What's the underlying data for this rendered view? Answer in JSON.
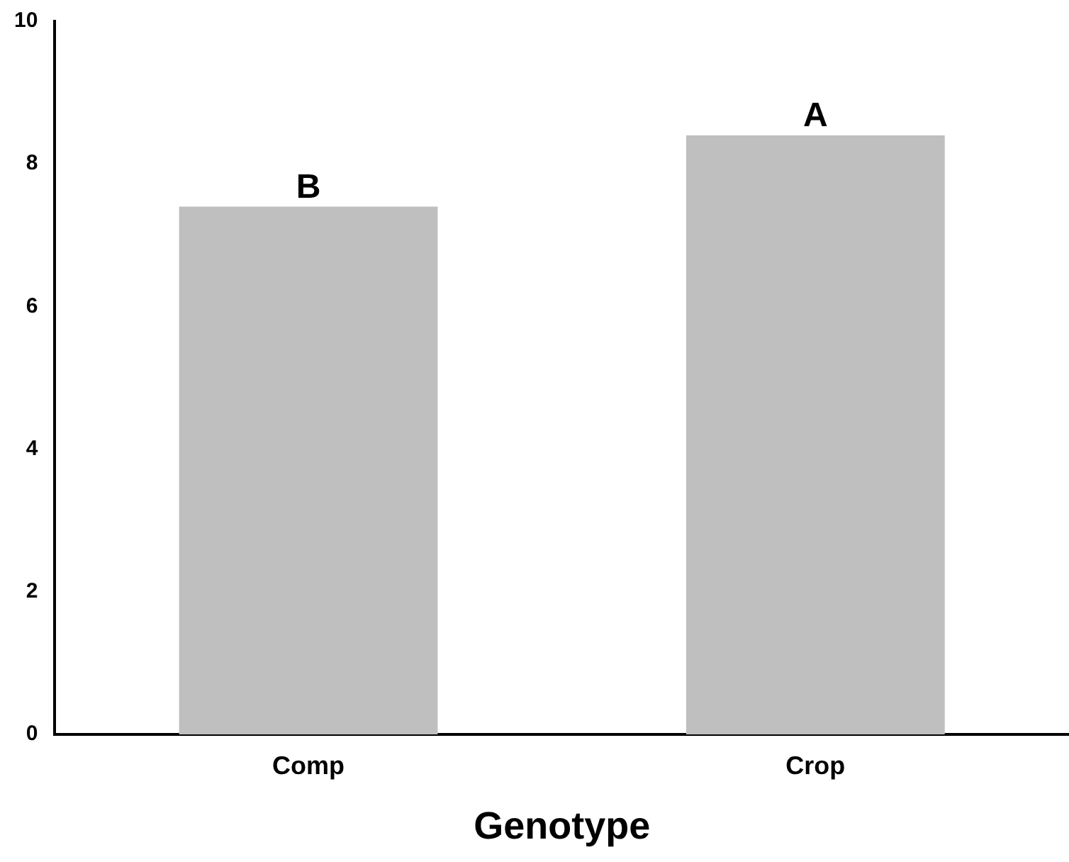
{
  "chart_data": {
    "type": "bar",
    "xlabel": "Genotype",
    "categories": [
      "Comp",
      "Crop"
    ],
    "values": [
      7.4,
      8.4
    ],
    "color": "#bfbfbf",
    "ylim": [
      0,
      10
    ],
    "yticks": [
      0,
      2,
      4,
      6,
      8,
      10
    ],
    "grid": false,
    "legend": false,
    "annotations": [
      {
        "text": "B",
        "x": "Comp",
        "y": 7.4
      },
      {
        "text": "A",
        "x": "Crop",
        "y": 8.4
      }
    ]
  }
}
